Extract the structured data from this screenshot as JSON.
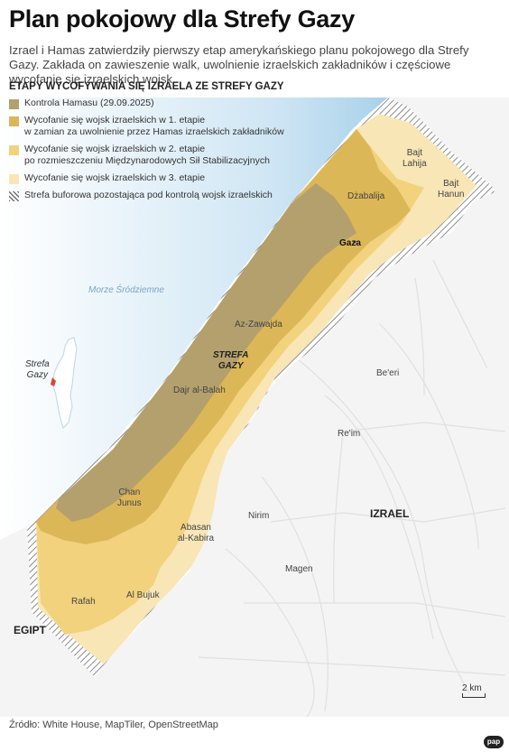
{
  "title": "Plan pokojowy dla Strefy Gazy",
  "lead": "Izrael i Hamas zatwierdziły pierwszy etap amerykańskiego planu pokojowego dla Strefy Gazy. Zakłada on zawieszenie walk, uwolnienie izraelskich zakładników i częściowe wycofanie się izraelskich wojsk.",
  "legend": {
    "title": "ETAPY WYCOFYWANIA SIĘ IZRAELA ZE STREFY GAZY",
    "items": [
      {
        "label": "Kontrola Hamasu (29.09.2025)",
        "color": "#b3a06c"
      },
      {
        "label": "Wycofanie się wojsk izraelskich w 1. etapie\nw zamian za uwolnienie przez Hamas izraelskich zakładników",
        "color": "#dcb758"
      },
      {
        "label": "Wycofanie się wojsk izraelskich w 2. etapie\npo rozmieszczeniu Międzynarodowych Sił Stabilizacyjnych",
        "color": "#f2d27c"
      },
      {
        "label": "Wycofanie się wojsk izraelskich w 3. etapie",
        "color": "#f9e6b6"
      },
      {
        "label": "Strefa buforowa pozostająca pod kontrolą wojsk izraelskich",
        "color": "hatch"
      }
    ]
  },
  "places": {
    "sea": "Morze Śródziemne",
    "bajt_lahija": "Bajt\nLahija",
    "bajt_hanun": "Bajt\nHanun",
    "dzabalija": "Dżabalija",
    "gaza": "Gaza",
    "az_zawajda": "Az-Zawajda",
    "strefa_gazy": "STREFA\nGAZY",
    "dajr_al_balah": "Dajr al-Balah",
    "beeri": "Be'eri",
    "reim": "Re'im",
    "chan_junus": "Chan\nJunus",
    "abasan": "Abasan\nal-Kabira",
    "nirim": "Nirim",
    "izrael": "IZRAEL",
    "magen": "Magen",
    "rafah": "Rafah",
    "al_bujuk": "Al Bujuk",
    "egipt": "EGIPT",
    "inset_label": "Strefa\nGazy"
  },
  "scale": "2 km",
  "source": "Źródło: White House, MapTiler, OpenStreetMap",
  "logo": "pap",
  "colors": {
    "sea": "#b8d9ee",
    "land": "#f5f5f5",
    "roads": "#e2e2e2"
  }
}
